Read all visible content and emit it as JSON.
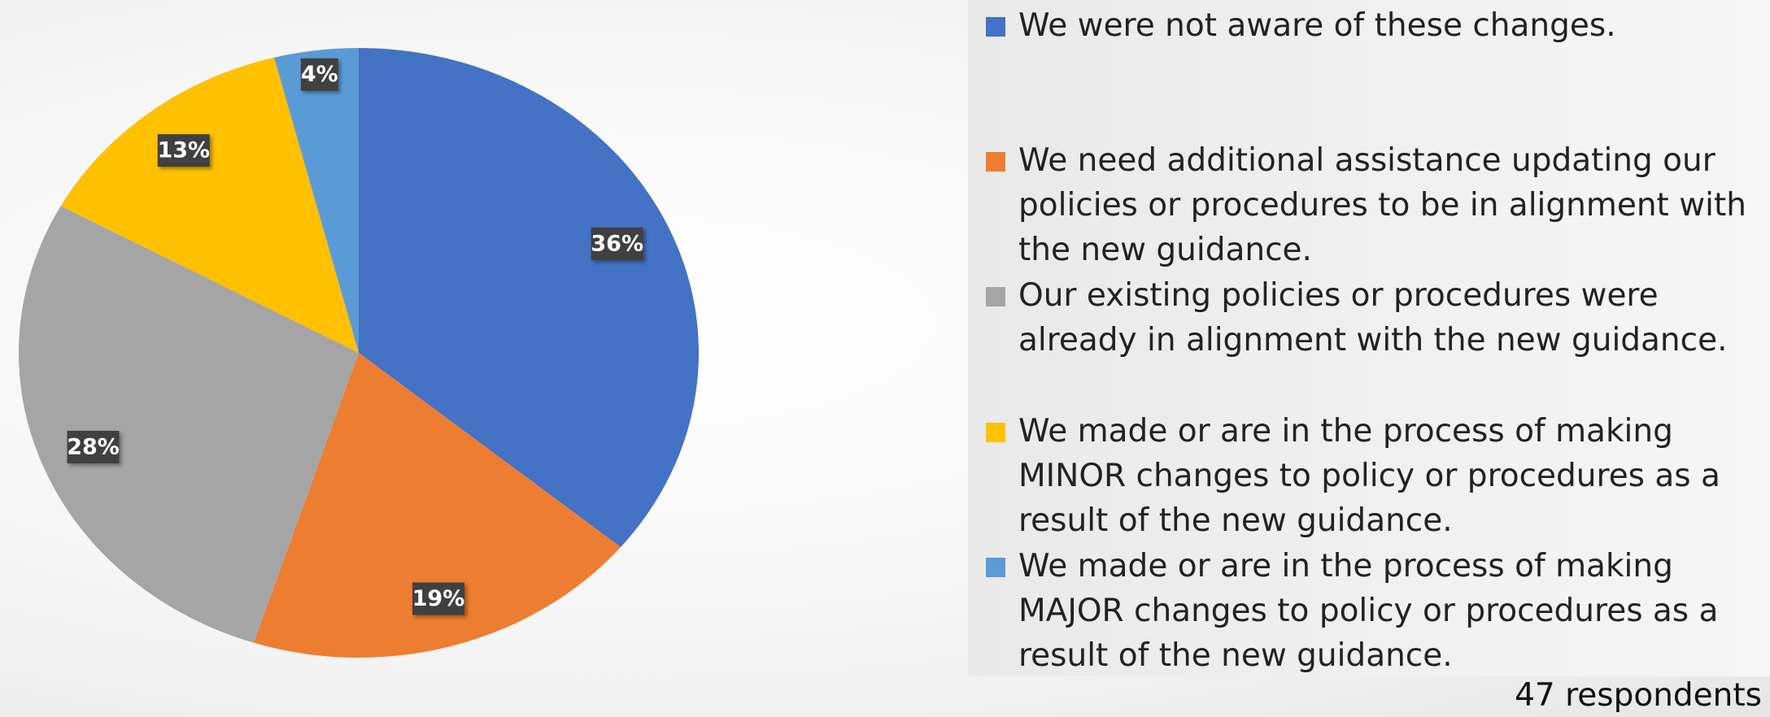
{
  "chart_data": {
    "type": "pie",
    "categories": [
      "We were not aware of these changes.",
      "We need additional assistance updating our policies or procedures to be in alignment with the new guidance.",
      "Our existing policies or procedures were already in alignment with the new guidance.",
      "We made or are in the process of making MINOR changes to policy or procedures as a result of the new guidance.",
      "We made or are in the process of making MAJOR changes to policy or procedures as a result of the new guidance."
    ],
    "values": [
      36,
      19,
      28,
      13,
      4
    ],
    "value_labels": [
      "36%",
      "19%",
      "28%",
      "13%",
      "4%"
    ],
    "colors": [
      "#4472c4",
      "#ed7d31",
      "#a5a5a5",
      "#ffc000",
      "#5b9bd5"
    ],
    "note": "47 respondents"
  }
}
